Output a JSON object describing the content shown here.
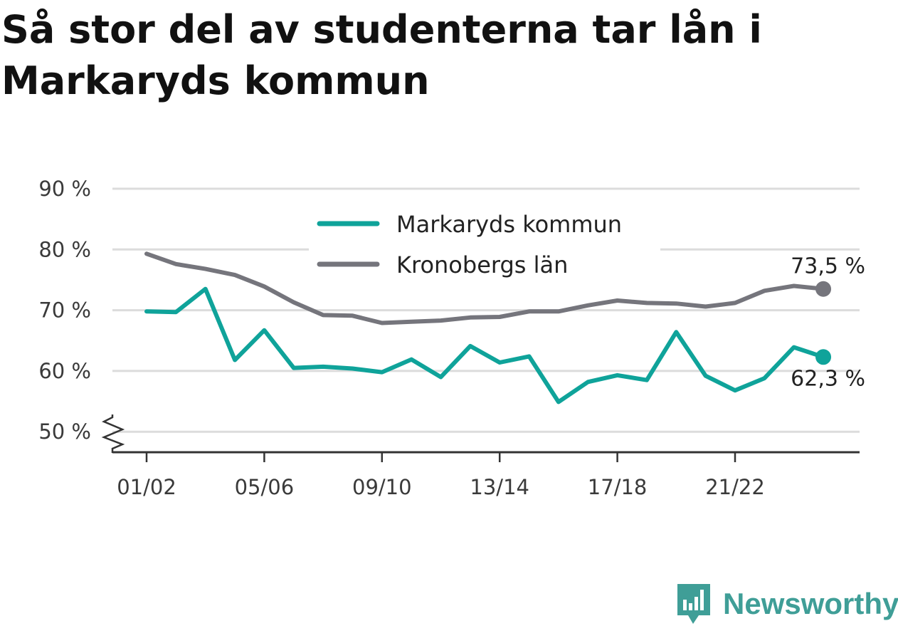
{
  "title": "Så stor del av studenterna tar lån i Markaryds kommun",
  "brand": {
    "name": "Newsworthy",
    "icon": "bar-chart-speech-bubble-icon"
  },
  "colors": {
    "markaryd": "#0fa39a",
    "kronoberg": "#75757c",
    "grid": "#dcdcdc",
    "axis": "#333333",
    "brand": "#3f9e97"
  },
  "chart_data": {
    "type": "line",
    "title": "Så stor del av studenterna tar lån i Markaryds kommun",
    "xlabel": "",
    "ylabel": "",
    "x": [
      "01/02",
      "02/03",
      "03/04",
      "04/05",
      "05/06",
      "06/07",
      "07/08",
      "08/09",
      "09/10",
      "10/11",
      "11/12",
      "12/13",
      "13/14",
      "14/15",
      "15/16",
      "16/17",
      "17/18",
      "18/19",
      "19/20",
      "20/21",
      "21/22",
      "22/23",
      "23/24",
      "24/25"
    ],
    "x_tick_labels": [
      "01/02",
      "05/06",
      "09/10",
      "13/14",
      "17/18",
      "21/22"
    ],
    "y_ticks": [
      50,
      60,
      70,
      80,
      90
    ],
    "y_tick_labels": [
      "50 %",
      "60 %",
      "70 %",
      "80 %",
      "90 %"
    ],
    "ylim": [
      46.5,
      90
    ],
    "y_axis_break": true,
    "grid": true,
    "legend_position": "top-center",
    "series": [
      {
        "name": "Markaryds kommun",
        "color": "#0fa39a",
        "values": [
          69.8,
          69.7,
          73.5,
          61.8,
          66.7,
          60.5,
          60.7,
          60.4,
          59.8,
          61.9,
          59.0,
          64.1,
          61.4,
          62.4,
          54.9,
          58.2,
          59.3,
          58.5,
          66.4,
          59.2,
          56.8,
          58.8,
          63.9,
          62.3
        ],
        "end_label": "62,3 %"
      },
      {
        "name": "Kronobergs län",
        "color": "#75757c",
        "values": [
          79.3,
          77.6,
          76.8,
          75.8,
          73.9,
          71.3,
          69.2,
          69.1,
          67.9,
          68.1,
          68.3,
          68.8,
          68.9,
          69.8,
          69.8,
          70.8,
          71.6,
          71.2,
          71.1,
          70.6,
          71.2,
          73.2,
          74.0,
          73.5
        ],
        "end_label": "73,5 %"
      }
    ]
  }
}
